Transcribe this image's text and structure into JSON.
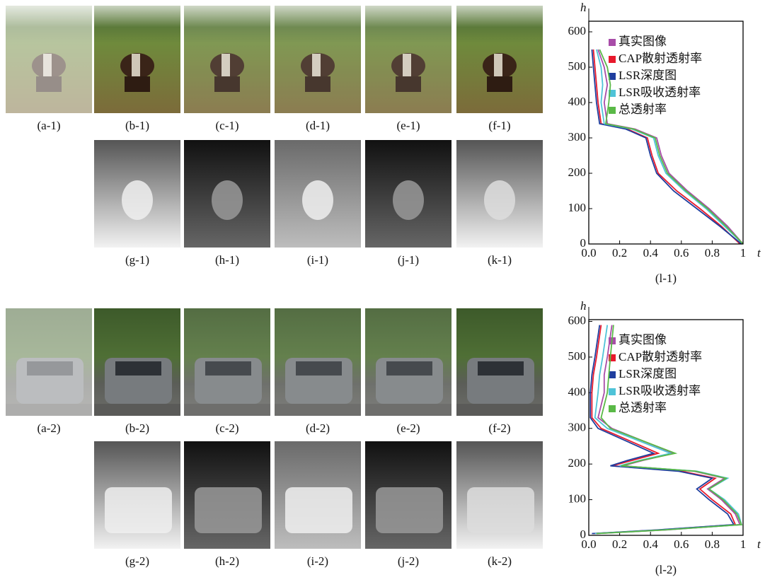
{
  "panels": {
    "captions": [
      "(a-1)",
      "(b-1)",
      "(c-1)",
      "(d-1)",
      "(e-1)",
      "(f-1)",
      "(g-1)",
      "(h-1)",
      "(i-1)",
      "(j-1)",
      "(k-1)",
      "(a-2)",
      "(b-2)",
      "(c-2)",
      "(d-2)",
      "(e-2)",
      "(f-2)",
      "(g-2)",
      "(h-2)",
      "(i-2)",
      "(j-2)",
      "(k-2)"
    ]
  },
  "chart_data": [
    {
      "type": "line",
      "caption": "(l-1)",
      "xlabel": "t",
      "ylabel": "h",
      "xlim": [
        0,
        1
      ],
      "ylim": [
        0,
        630
      ],
      "xticks": [
        {
          "value": 0,
          "label": "0.0"
        },
        0.2,
        0.4,
        0.6,
        0.8,
        1
      ],
      "yticks": [
        0,
        100,
        200,
        300,
        400,
        500,
        600
      ],
      "series": [
        {
          "name": "真实图像",
          "color": "#a84ca8",
          "x": [
            1.0,
            0.9,
            0.78,
            0.64,
            0.52,
            0.47,
            0.44,
            0.3,
            0.12,
            0.1,
            0.12,
            0.1,
            0.06
          ],
          "values": [
            0,
            50,
            100,
            150,
            200,
            250,
            300,
            325,
            340,
            400,
            450,
            500,
            550
          ]
        },
        {
          "name": "CAP散射透射率",
          "color": "#e8192c",
          "x": [
            0.98,
            0.86,
            0.72,
            0.57,
            0.45,
            0.41,
            0.38,
            0.25,
            0.08,
            0.06,
            0.05,
            0.04,
            0.03
          ],
          "values": [
            0,
            50,
            100,
            150,
            200,
            250,
            300,
            325,
            340,
            400,
            450,
            500,
            550
          ]
        },
        {
          "name": "LSR深度图",
          "color": "#1f3e9e",
          "x": [
            0.99,
            0.85,
            0.7,
            0.55,
            0.44,
            0.4,
            0.37,
            0.24,
            0.07,
            0.05,
            0.04,
            0.03,
            0.02
          ],
          "values": [
            0,
            50,
            100,
            150,
            200,
            250,
            300,
            325,
            340,
            400,
            450,
            500,
            550
          ]
        },
        {
          "name": "LSR吸收透射率",
          "color": "#4fc3d8",
          "x": [
            1.0,
            0.88,
            0.76,
            0.62,
            0.5,
            0.45,
            0.42,
            0.28,
            0.1,
            0.08,
            0.09,
            0.08,
            0.05
          ],
          "values": [
            0,
            50,
            100,
            150,
            200,
            250,
            300,
            325,
            340,
            400,
            450,
            500,
            550
          ]
        },
        {
          "name": "总透射率",
          "color": "#5ab947",
          "x": [
            1.0,
            0.89,
            0.77,
            0.63,
            0.51,
            0.46,
            0.43,
            0.29,
            0.11,
            0.13,
            0.14,
            0.12,
            0.07
          ],
          "values": [
            0,
            50,
            100,
            150,
            200,
            250,
            300,
            325,
            340,
            400,
            450,
            500,
            550
          ]
        }
      ]
    },
    {
      "type": "line",
      "caption": "(l-2)",
      "xlabel": "t",
      "ylabel": "h",
      "xlim": [
        0,
        1
      ],
      "ylim": [
        0,
        605
      ],
      "xticks": [
        {
          "value": 0,
          "label": "0.0"
        },
        0.2,
        0.4,
        0.6,
        0.8,
        1
      ],
      "yticks": [
        0,
        100,
        200,
        300,
        400,
        500,
        600
      ],
      "series": [
        {
          "name": "真实图像",
          "color": "#a84ca8",
          "x": [
            0.05,
            0.5,
            0.98,
            0.95,
            0.86,
            0.77,
            0.88,
            0.68,
            0.22,
            0.35,
            0.55,
            0.15,
            0.06,
            0.1,
            0.1,
            0.12,
            0.15
          ],
          "values": [
            5,
            15,
            30,
            60,
            100,
            130,
            160,
            180,
            195,
            210,
            230,
            300,
            330,
            400,
            450,
            500,
            590
          ]
        },
        {
          "name": "CAP散射透射率",
          "color": "#e8192c",
          "x": [
            0.03,
            0.45,
            0.95,
            0.92,
            0.8,
            0.72,
            0.82,
            0.6,
            0.15,
            0.28,
            0.45,
            0.08,
            0.02,
            0.02,
            0.03,
            0.05,
            0.08
          ],
          "values": [
            5,
            15,
            30,
            60,
            100,
            130,
            160,
            180,
            195,
            210,
            230,
            300,
            330,
            400,
            450,
            500,
            590
          ]
        },
        {
          "name": "LSR深度图",
          "color": "#1f3e9e",
          "x": [
            0.02,
            0.44,
            0.94,
            0.9,
            0.78,
            0.7,
            0.8,
            0.58,
            0.14,
            0.25,
            0.42,
            0.06,
            0.01,
            0.01,
            0.02,
            0.04,
            0.07
          ],
          "values": [
            5,
            15,
            30,
            60,
            100,
            130,
            160,
            180,
            195,
            210,
            230,
            300,
            330,
            400,
            450,
            500,
            590
          ]
        },
        {
          "name": "LSR吸收透射率",
          "color": "#4fc3d8",
          "x": [
            0.04,
            0.48,
            0.99,
            0.97,
            0.88,
            0.78,
            0.9,
            0.7,
            0.2,
            0.33,
            0.53,
            0.12,
            0.04,
            0.06,
            0.07,
            0.09,
            0.12
          ],
          "values": [
            5,
            15,
            30,
            60,
            100,
            130,
            160,
            180,
            195,
            210,
            230,
            300,
            330,
            400,
            450,
            500,
            590
          ]
        },
        {
          "name": "总透射率",
          "color": "#5ab947",
          "x": [
            0.05,
            0.49,
            0.99,
            0.96,
            0.87,
            0.78,
            0.89,
            0.69,
            0.21,
            0.34,
            0.56,
            0.14,
            0.08,
            0.12,
            0.13,
            0.14,
            0.16
          ],
          "values": [
            5,
            15,
            30,
            60,
            100,
            130,
            160,
            180,
            195,
            210,
            230,
            300,
            330,
            400,
            450,
            500,
            590
          ]
        }
      ]
    }
  ]
}
